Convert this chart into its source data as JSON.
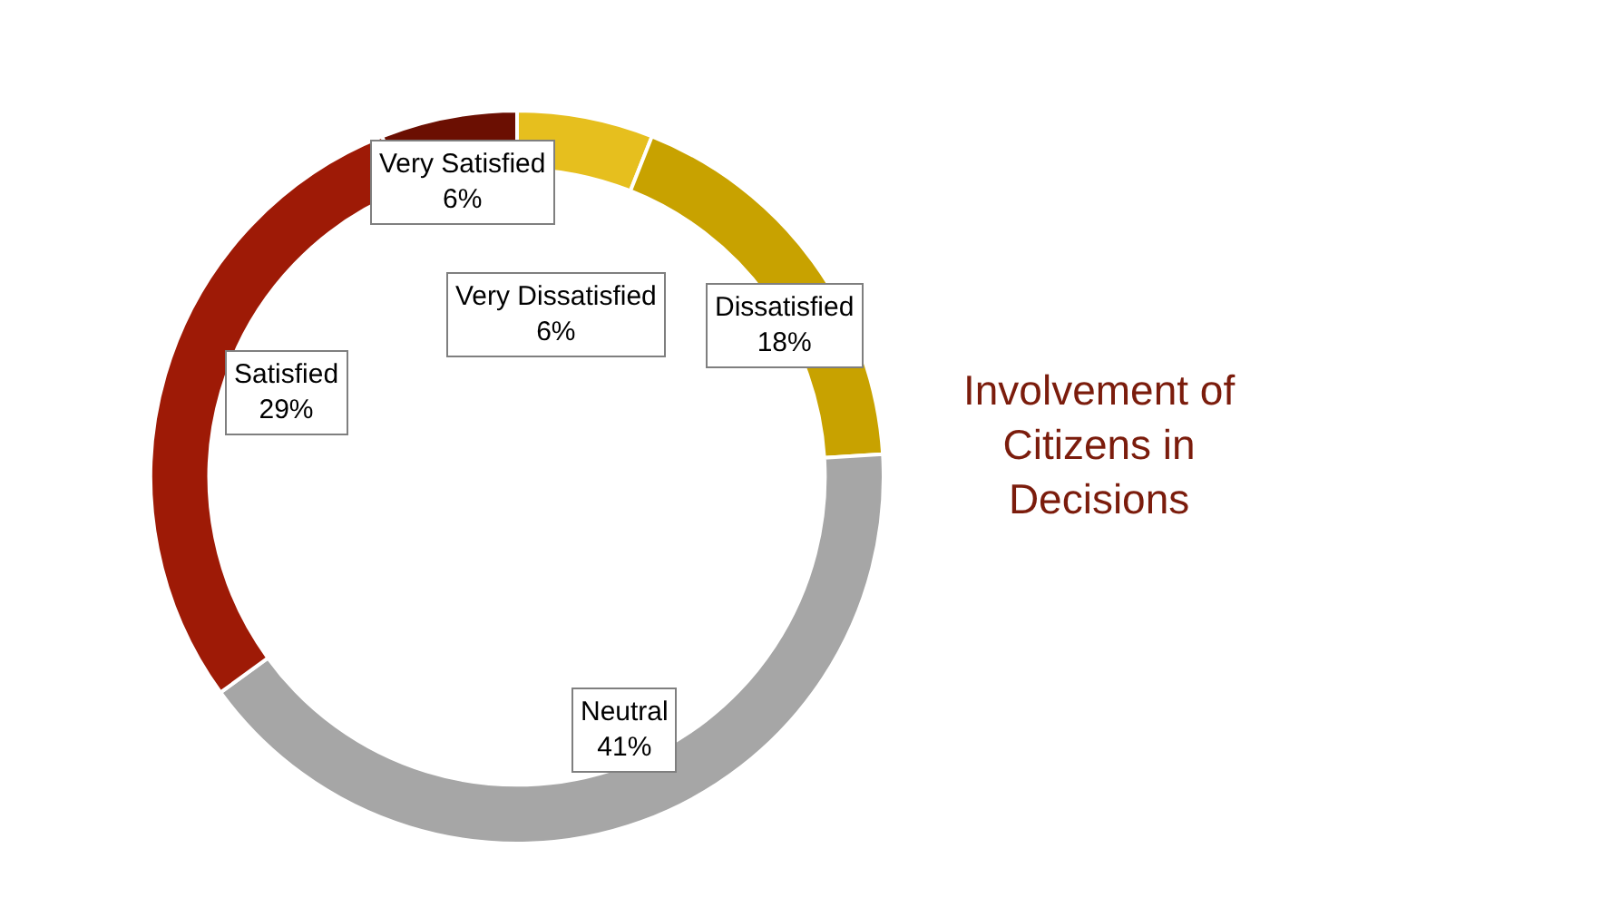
{
  "chart_data": {
    "type": "donut",
    "title": "Involvement of\nCitizens in\nDecisions",
    "categories": [
      "Very Dissatisfied",
      "Dissatisfied",
      "Neutral",
      "Satisfied",
      "Very Satisfied"
    ],
    "values": [
      6,
      18,
      41,
      29,
      6
    ],
    "value_labels": [
      "6%",
      "18%",
      "41%",
      "29%",
      "6%"
    ],
    "colors": [
      "#e6bf1e",
      "#c8a200",
      "#a6a6a6",
      "#9e1a06",
      "#6b0f02"
    ],
    "legend": false
  }
}
